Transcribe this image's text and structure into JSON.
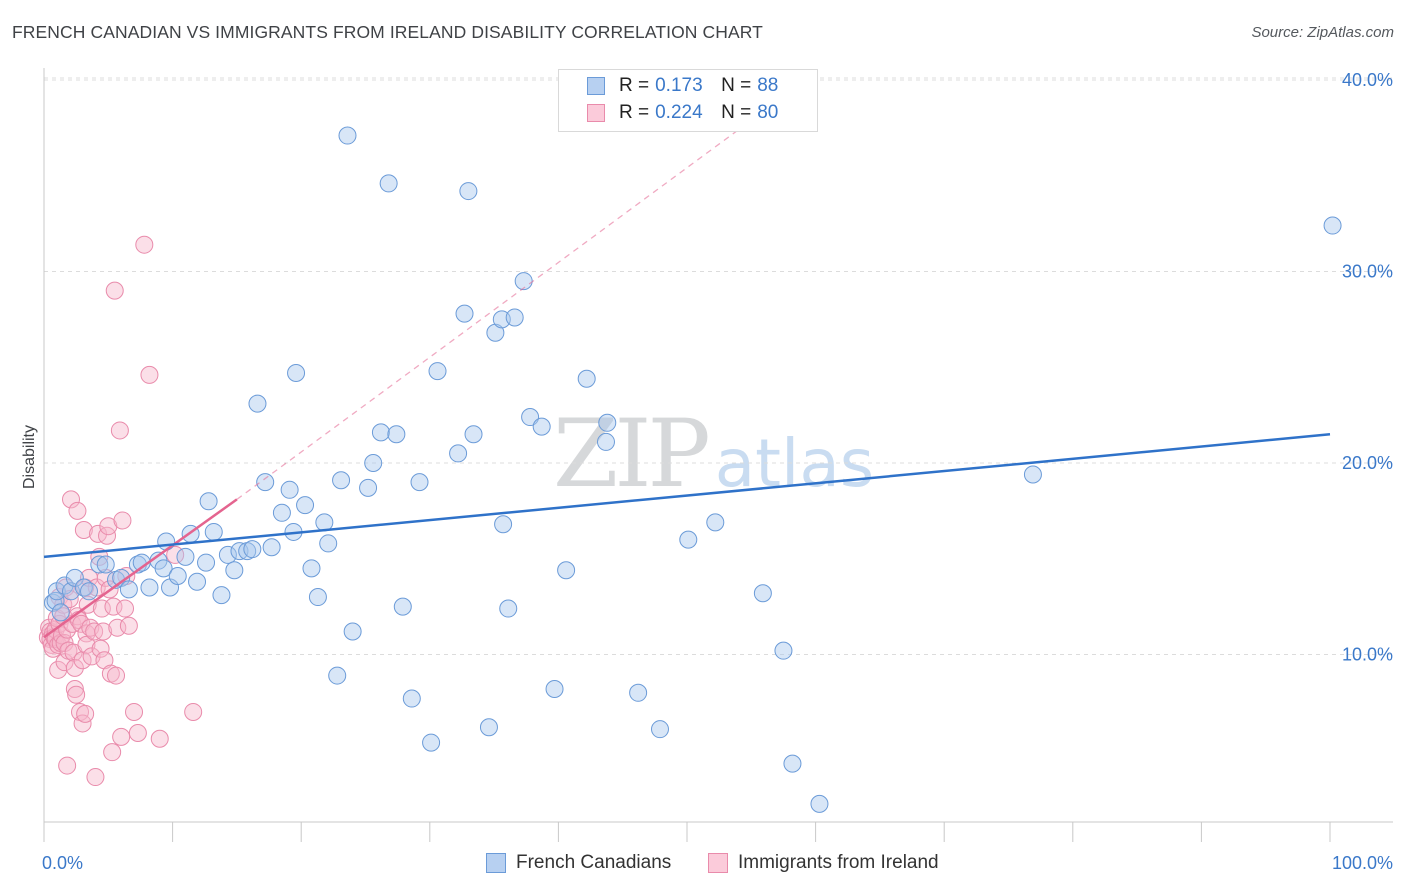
{
  "header": {
    "title": "FRENCH CANADIAN VS IMMIGRANTS FROM IRELAND DISABILITY CORRELATION CHART",
    "source": "Source: ZipAtlas.com"
  },
  "watermark": {
    "zip": "ZIP",
    "atlas": "atlas"
  },
  "legend": {
    "rows": [
      {
        "r_label": "R = ",
        "r_value": "0.173",
        "n_label": "N = ",
        "n_value": "88"
      },
      {
        "r_label": "R = ",
        "r_value": "0.224",
        "n_label": "N = ",
        "n_value": "80"
      }
    ]
  },
  "bottom_legend": {
    "series1": "French Canadians",
    "series2": "Immigrants from Ireland"
  },
  "colors": {
    "blue_fill": "#a9c8ee",
    "blue_stroke": "#6b9bd8",
    "blue_line": "#2f72c9",
    "pink_fill": "#f6b8cc",
    "pink_stroke": "#e98bab",
    "pink_line": "#e4648f",
    "grid": "#dcdcdc",
    "tick_text": "#3a78c9"
  },
  "chart_data": {
    "type": "scatter",
    "title": "FRENCH CANADIAN VS IMMIGRANTS FROM IRELAND DISABILITY CORRELATION CHART",
    "xlabel": "",
    "ylabel": "Disability",
    "xlim": [
      0,
      100
    ],
    "ylim": [
      0,
      42
    ],
    "x_tick_labels": [
      "0.0%",
      "100.0%"
    ],
    "y_ticks": [
      10,
      20,
      30,
      40
    ],
    "y_tick_labels": [
      "10.0%",
      "20.0%",
      "30.0%",
      "40.0%"
    ],
    "grid": true,
    "series": [
      {
        "name": "French Canadians",
        "r": 0.173,
        "n": 88,
        "trend": {
          "x": [
            0,
            100
          ],
          "y": [
            15.1,
            21.5
          ],
          "style": "solid"
        },
        "points": [
          [
            0.7,
            12.7
          ],
          [
            0.9,
            12.8
          ],
          [
            1.0,
            13.3
          ],
          [
            1.3,
            12.2
          ],
          [
            1.6,
            13.6
          ],
          [
            2.1,
            13.3
          ],
          [
            2.4,
            14.0
          ],
          [
            3.1,
            13.5
          ],
          [
            3.5,
            13.3
          ],
          [
            4.3,
            14.7
          ],
          [
            4.8,
            14.7
          ],
          [
            5.6,
            13.9
          ],
          [
            6.0,
            14.0
          ],
          [
            6.6,
            13.4
          ],
          [
            7.3,
            14.7
          ],
          [
            7.6,
            14.8
          ],
          [
            8.2,
            13.5
          ],
          [
            8.9,
            14.9
          ],
          [
            9.3,
            14.5
          ],
          [
            9.5,
            15.9
          ],
          [
            9.8,
            13.5
          ],
          [
            10.4,
            14.1
          ],
          [
            11.0,
            15.1
          ],
          [
            11.4,
            16.3
          ],
          [
            11.9,
            13.8
          ],
          [
            12.6,
            14.8
          ],
          [
            12.8,
            18.0
          ],
          [
            13.2,
            16.4
          ],
          [
            13.8,
            13.1
          ],
          [
            14.3,
            15.2
          ],
          [
            14.8,
            14.4
          ],
          [
            15.2,
            15.4
          ],
          [
            15.8,
            15.4
          ],
          [
            16.2,
            15.5
          ],
          [
            16.6,
            23.1
          ],
          [
            17.2,
            19.0
          ],
          [
            17.7,
            15.6
          ],
          [
            18.5,
            17.4
          ],
          [
            19.1,
            18.6
          ],
          [
            19.4,
            16.4
          ],
          [
            19.6,
            24.7
          ],
          [
            20.3,
            17.8
          ],
          [
            20.8,
            14.5
          ],
          [
            21.3,
            13.0
          ],
          [
            21.8,
            16.9
          ],
          [
            22.1,
            15.8
          ],
          [
            22.8,
            8.9
          ],
          [
            23.1,
            19.1
          ],
          [
            23.6,
            37.1
          ],
          [
            24.0,
            11.2
          ],
          [
            25.2,
            18.7
          ],
          [
            25.6,
            20.0
          ],
          [
            26.2,
            21.6
          ],
          [
            26.8,
            34.6
          ],
          [
            27.4,
            21.5
          ],
          [
            27.9,
            12.5
          ],
          [
            28.6,
            7.7
          ],
          [
            29.2,
            19.0
          ],
          [
            30.1,
            5.4
          ],
          [
            30.6,
            24.8
          ],
          [
            32.2,
            20.5
          ],
          [
            32.7,
            27.8
          ],
          [
            33.0,
            34.2
          ],
          [
            33.4,
            21.5
          ],
          [
            34.6,
            6.2
          ],
          [
            35.1,
            26.8
          ],
          [
            35.6,
            27.5
          ],
          [
            35.7,
            16.8
          ],
          [
            36.1,
            12.4
          ],
          [
            36.6,
            27.6
          ],
          [
            37.3,
            29.5
          ],
          [
            37.8,
            22.4
          ],
          [
            38.7,
            21.9
          ],
          [
            39.7,
            8.2
          ],
          [
            40.6,
            14.4
          ],
          [
            42.2,
            24.4
          ],
          [
            43.7,
            21.1
          ],
          [
            43.8,
            22.1
          ],
          [
            46.2,
            8.0
          ],
          [
            47.9,
            6.1
          ],
          [
            50.1,
            16.0
          ],
          [
            52.2,
            16.9
          ],
          [
            55.9,
            13.2
          ],
          [
            57.5,
            10.2
          ],
          [
            58.2,
            4.3
          ],
          [
            60.3,
            2.2
          ],
          [
            76.9,
            19.4
          ],
          [
            100.2,
            32.4
          ]
        ]
      },
      {
        "name": "Immigrants from Ireland",
        "r": 0.224,
        "n": 80,
        "trend": {
          "x": [
            0,
            15
          ],
          "y": [
            10.9,
            18.1
          ],
          "style": "solid"
        },
        "trend_extension": {
          "x": [
            15,
            54
          ],
          "y": [
            18.1,
            37.4
          ],
          "style": "dashed"
        },
        "points": [
          [
            0.3,
            10.9
          ],
          [
            0.4,
            11.4
          ],
          [
            0.5,
            11.2
          ],
          [
            0.5,
            10.8
          ],
          [
            0.6,
            10.5
          ],
          [
            0.7,
            11.1
          ],
          [
            0.7,
            10.3
          ],
          [
            0.8,
            10.9
          ],
          [
            0.9,
            11.3
          ],
          [
            0.9,
            10.8
          ],
          [
            1.0,
            11.9
          ],
          [
            1.1,
            10.5
          ],
          [
            1.1,
            9.2
          ],
          [
            1.2,
            13.0
          ],
          [
            1.2,
            11.6
          ],
          [
            1.3,
            10.6
          ],
          [
            1.4,
            11.0
          ],
          [
            1.5,
            12.6
          ],
          [
            1.5,
            12.0
          ],
          [
            1.6,
            10.6
          ],
          [
            1.6,
            9.6
          ],
          [
            1.7,
            13.5
          ],
          [
            1.8,
            11.3
          ],
          [
            1.9,
            10.2
          ],
          [
            2.0,
            12.9
          ],
          [
            2.1,
            18.1
          ],
          [
            2.2,
            11.6
          ],
          [
            2.3,
            10.1
          ],
          [
            2.4,
            9.3
          ],
          [
            2.4,
            8.2
          ],
          [
            2.5,
            7.9
          ],
          [
            2.6,
            17.5
          ],
          [
            2.6,
            12.0
          ],
          [
            2.7,
            11.8
          ],
          [
            2.8,
            7.0
          ],
          [
            2.9,
            11.6
          ],
          [
            3.0,
            9.7
          ],
          [
            3.0,
            6.4
          ],
          [
            3.1,
            16.5
          ],
          [
            3.2,
            13.5
          ],
          [
            3.3,
            11.1
          ],
          [
            3.3,
            10.5
          ],
          [
            3.4,
            12.6
          ],
          [
            3.5,
            14.0
          ],
          [
            3.6,
            11.4
          ],
          [
            3.7,
            9.9
          ],
          [
            3.9,
            11.2
          ],
          [
            4.0,
            3.6
          ],
          [
            4.1,
            13.5
          ],
          [
            4.2,
            16.3
          ],
          [
            4.3,
            15.1
          ],
          [
            4.4,
            10.3
          ],
          [
            4.5,
            12.4
          ],
          [
            4.6,
            11.2
          ],
          [
            4.7,
            9.7
          ],
          [
            4.8,
            14.0
          ],
          [
            4.9,
            16.2
          ],
          [
            5.0,
            16.7
          ],
          [
            5.1,
            13.4
          ],
          [
            5.2,
            9.0
          ],
          [
            5.3,
            4.9
          ],
          [
            5.4,
            12.5
          ],
          [
            5.5,
            29.0
          ],
          [
            5.6,
            8.9
          ],
          [
            5.7,
            11.4
          ],
          [
            5.9,
            21.7
          ],
          [
            6.0,
            5.7
          ],
          [
            6.1,
            17.0
          ],
          [
            6.3,
            12.4
          ],
          [
            6.4,
            14.1
          ],
          [
            6.6,
            11.5
          ],
          [
            7.0,
            7.0
          ],
          [
            7.3,
            5.9
          ],
          [
            7.8,
            31.4
          ],
          [
            8.2,
            24.6
          ],
          [
            9.0,
            5.6
          ],
          [
            10.2,
            15.2
          ],
          [
            11.6,
            7.0
          ],
          [
            3.2,
            6.9
          ],
          [
            1.8,
            4.2
          ]
        ]
      }
    ]
  }
}
